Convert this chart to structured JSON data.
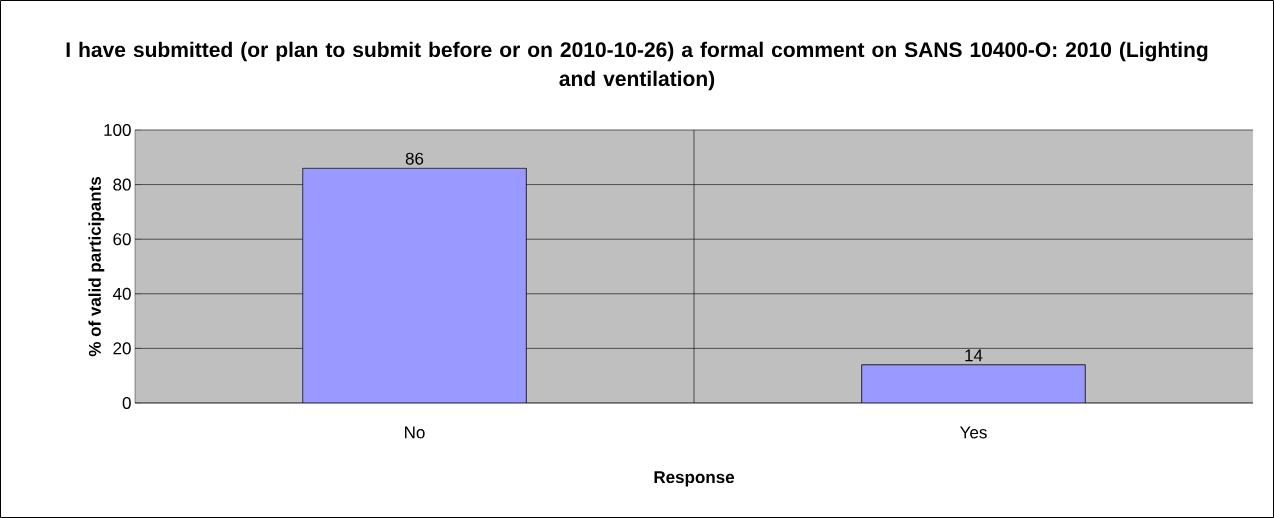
{
  "chart_data": {
    "type": "bar",
    "title": "I have submitted (or plan to submit before or on 2010-10-26) a formal comment on SANS 10400-O: 2010 (Lighting and ventilation)",
    "xlabel": "Response",
    "ylabel": "% of valid participants",
    "categories": [
      "No",
      "Yes"
    ],
    "values": [
      86,
      14
    ],
    "color": "#9999ff",
    "ylim": [
      0,
      100
    ],
    "yticks": [
      0,
      20,
      40,
      60,
      80,
      100
    ],
    "grid": true,
    "data_labels": true
  }
}
